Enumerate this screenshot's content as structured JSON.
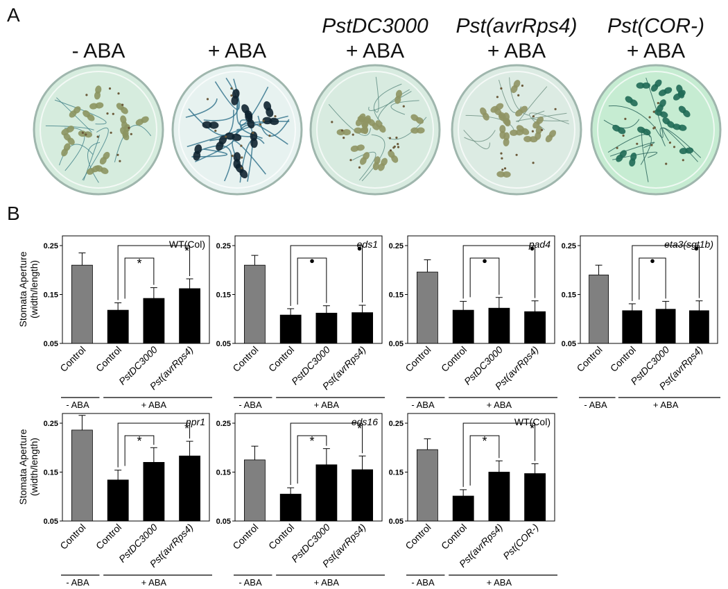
{
  "panel_a": {
    "label": "A",
    "plates": [
      {
        "line1": "",
        "line2": "- ABA",
        "tint": "#d6ecde",
        "seedling": "#8c9560",
        "stain": "#3f7f86",
        "heavy": false
      },
      {
        "line1": "",
        "line2": "+ ABA",
        "tint": "#e7f2f0",
        "seedling": "#0f2330",
        "stain": "#2e6f8a",
        "heavy": true
      },
      {
        "line1": "PstDC3000",
        "line2": "+ ABA",
        "tint": "#d8ebe0",
        "seedling": "#8f9563",
        "stain": "#5b8a80",
        "heavy": false
      },
      {
        "line1": "Pst(avrRps4)",
        "line2": "+ ABA",
        "tint": "#dcebe3",
        "seedling": "#8f9463",
        "stain": "#6b8f80",
        "heavy": false
      },
      {
        "line1": "Pst(COR-)",
        "line2": "+ ABA",
        "tint": "#c6ecd2",
        "seedling": "#1f6a55",
        "stain": "#1f5b52",
        "heavy": false
      }
    ]
  },
  "panel_b": {
    "label": "B",
    "ylabel_line1": "Stomata Aperture",
    "ylabel_line2": "(width/length)",
    "minus_aba": "- ABA",
    "plus_aba": "+ ABA"
  },
  "chart_data": [
    {
      "type": "bar",
      "genotype": "WT(Col)",
      "genotype_italic": false,
      "categories": [
        "Control",
        "Control",
        "PstDC3000",
        "Pst(avrRps4)"
      ],
      "values": [
        0.21,
        0.118,
        0.142,
        0.162
      ],
      "errors": [
        0.025,
        0.015,
        0.022,
        0.02
      ],
      "colors": [
        "#808080",
        "#000000",
        "#000000",
        "#000000"
      ],
      "significance": [
        "*",
        "*"
      ],
      "ylim": [
        0.05,
        0.25
      ],
      "yticks": [
        "0.05",
        "0.15",
        "0.25"
      ]
    },
    {
      "type": "bar",
      "genotype": "eds1",
      "genotype_italic": true,
      "categories": [
        "Control",
        "Control",
        "PstDC3000",
        "Pst(avrRps4)"
      ],
      "values": [
        0.21,
        0.108,
        0.112,
        0.113
      ],
      "errors": [
        0.02,
        0.013,
        0.015,
        0.015
      ],
      "colors": [
        "#808080",
        "#000000",
        "#000000",
        "#000000"
      ],
      "significance": [
        "●",
        "●"
      ],
      "ylim": [
        0.05,
        0.25
      ],
      "yticks": [
        "0.05",
        "0.15",
        "0.25"
      ]
    },
    {
      "type": "bar",
      "genotype": "pad4",
      "genotype_italic": true,
      "categories": [
        "Control",
        "Control",
        "PstDC3000",
        "Pst(avrRps4)"
      ],
      "values": [
        0.196,
        0.118,
        0.122,
        0.115
      ],
      "errors": [
        0.025,
        0.018,
        0.022,
        0.022
      ],
      "colors": [
        "#808080",
        "#000000",
        "#000000",
        "#000000"
      ],
      "significance": [
        "●",
        "●"
      ],
      "ylim": [
        0.05,
        0.25
      ],
      "yticks": [
        "0.05",
        "0.15",
        "0.25"
      ]
    },
    {
      "type": "bar",
      "genotype": "eta3(sgt1b)",
      "genotype_italic": true,
      "categories": [
        "Control",
        "Control",
        "PstDC3000",
        "Pst(avrRps4)"
      ],
      "values": [
        0.19,
        0.117,
        0.12,
        0.117
      ],
      "errors": [
        0.02,
        0.014,
        0.016,
        0.02
      ],
      "colors": [
        "#808080",
        "#000000",
        "#000000",
        "#000000"
      ],
      "significance": [
        "●",
        "●"
      ],
      "ylim": [
        0.05,
        0.25
      ],
      "yticks": [
        "0.05",
        "0.15",
        "0.25"
      ]
    },
    {
      "type": "bar",
      "genotype": "npr1",
      "genotype_italic": true,
      "categories": [
        "Control",
        "Control",
        "PstDC3000",
        "Pst(avrRps4)"
      ],
      "values": [
        0.236,
        0.134,
        0.17,
        0.183
      ],
      "errors": [
        0.03,
        0.02,
        0.03,
        0.03
      ],
      "colors": [
        "#808080",
        "#000000",
        "#000000",
        "#000000"
      ],
      "significance": [
        "*",
        "*"
      ],
      "ylim": [
        0.05,
        0.25
      ],
      "yticks": [
        "0.05",
        "0.15",
        "0.25"
      ]
    },
    {
      "type": "bar",
      "genotype": "eds16",
      "genotype_italic": true,
      "categories": [
        "Control",
        "Control",
        "PstDC3000",
        "Pst(avrRps4)"
      ],
      "values": [
        0.175,
        0.105,
        0.165,
        0.155
      ],
      "errors": [
        0.028,
        0.013,
        0.033,
        0.028
      ],
      "colors": [
        "#808080",
        "#000000",
        "#000000",
        "#000000"
      ],
      "significance": [
        "*",
        "*"
      ],
      "ylim": [
        0.05,
        0.25
      ],
      "yticks": [
        "0.05",
        "0.15",
        "0.25"
      ]
    },
    {
      "type": "bar",
      "genotype": "WT(Col)",
      "genotype_italic": false,
      "categories": [
        "Control",
        "Control",
        "Pst(avrRps4)",
        "Pst(COR-)"
      ],
      "values": [
        0.196,
        0.101,
        0.15,
        0.147
      ],
      "errors": [
        0.022,
        0.013,
        0.023,
        0.02
      ],
      "colors": [
        "#808080",
        "#000000",
        "#000000",
        "#000000"
      ],
      "significance": [
        "*",
        "*"
      ],
      "ylim": [
        0.05,
        0.25
      ],
      "yticks": [
        "0.05",
        "0.15",
        "0.25"
      ]
    }
  ]
}
